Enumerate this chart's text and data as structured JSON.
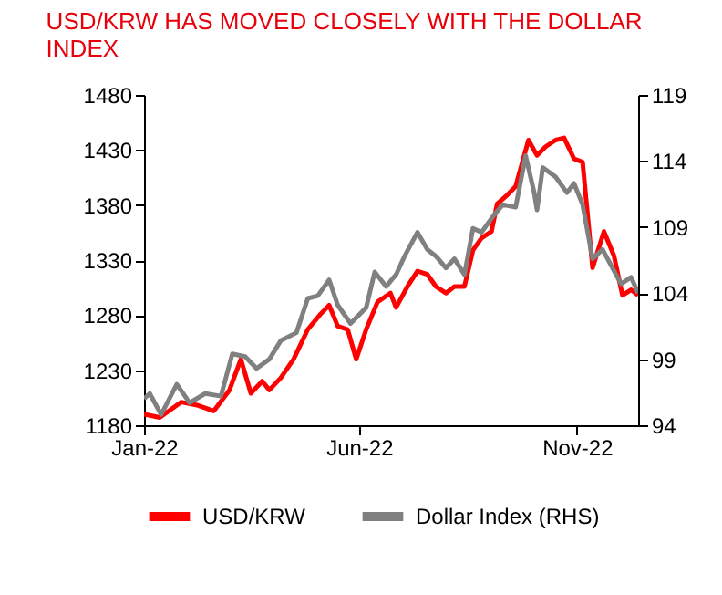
{
  "chart_data": {
    "type": "line",
    "title": "USD/KRW HAS MOVED CLOSELY WITH THE DOLLAR INDEX",
    "legend": "bottom",
    "xlim": [
      "2022-01-01",
      "2022-12-14"
    ],
    "xticks": [
      {
        "value": "2022-01-01",
        "label": "Jan-22"
      },
      {
        "value": "2022-06-01",
        "label": "Jun-22"
      },
      {
        "value": "2022-11-01",
        "label": "Nov-22"
      }
    ],
    "ylim": [
      1180,
      1480
    ],
    "yticks": [
      1180,
      1230,
      1280,
      1330,
      1380,
      1430,
      1480
    ],
    "y2lim": [
      94,
      119
    ],
    "y2ticks": [
      94,
      99,
      104,
      109,
      114,
      119
    ],
    "series": [
      {
        "name": "USD/KRW",
        "color": "#ff0000",
        "x": [
          "2022-01-01",
          "2022-01-12",
          "2022-01-27",
          "2022-02-08",
          "2022-02-19",
          "2022-03-02",
          "2022-03-10",
          "2022-03-17",
          "2022-03-25",
          "2022-03-30",
          "2022-04-07",
          "2022-04-16",
          "2022-04-26",
          "2022-05-05",
          "2022-05-11",
          "2022-05-17",
          "2022-05-24",
          "2022-05-30",
          "2022-06-06",
          "2022-06-14",
          "2022-06-23",
          "2022-06-27",
          "2022-07-05",
          "2022-07-12",
          "2022-07-19",
          "2022-07-25",
          "2022-08-01",
          "2022-08-07",
          "2022-08-14",
          "2022-08-20",
          "2022-08-26",
          "2022-09-02",
          "2022-09-06",
          "2022-09-13",
          "2022-09-19",
          "2022-09-28",
          "2022-10-04",
          "2022-10-10",
          "2022-10-17",
          "2022-10-23",
          "2022-10-30",
          "2022-11-05",
          "2022-11-12",
          "2022-11-20",
          "2022-11-27",
          "2022-12-03",
          "2022-12-09",
          "2022-12-14"
        ],
        "values": [
          1190,
          1187,
          1201,
          1198,
          1193,
          1212,
          1240,
          1209,
          1220,
          1212,
          1223,
          1240,
          1267,
          1281,
          1289,
          1270,
          1267,
          1240,
          1267,
          1292,
          1300,
          1287,
          1306,
          1320,
          1317,
          1306,
          1300,
          1306,
          1306,
          1339,
          1350,
          1356,
          1381,
          1389,
          1397,
          1439,
          1425,
          1433,
          1439,
          1441,
          1422,
          1419,
          1323,
          1356,
          1334,
          1298,
          1303,
          1298
        ]
      },
      {
        "name": "Dollar Index (RHS)",
        "color": "#808080",
        "axis": "y2",
        "x": [
          "2022-01-01",
          "2022-01-05",
          "2022-01-13",
          "2022-01-24",
          "2022-02-02",
          "2022-02-13",
          "2022-02-24",
          "2022-03-04",
          "2022-03-13",
          "2022-03-21",
          "2022-03-30",
          "2022-04-07",
          "2022-04-18",
          "2022-04-26",
          "2022-05-03",
          "2022-05-11",
          "2022-05-17",
          "2022-05-26",
          "2022-06-06",
          "2022-06-12",
          "2022-06-20",
          "2022-06-27",
          "2022-07-03",
          "2022-07-12",
          "2022-07-19",
          "2022-07-25",
          "2022-08-01",
          "2022-08-07",
          "2022-08-14",
          "2022-08-20",
          "2022-08-26",
          "2022-09-03",
          "2022-09-10",
          "2022-09-19",
          "2022-09-26",
          "2022-10-02",
          "2022-10-04",
          "2022-10-08",
          "2022-10-17",
          "2022-10-25",
          "2022-10-30",
          "2022-11-05",
          "2022-11-12",
          "2022-11-19",
          "2022-11-25",
          "2022-12-02",
          "2022-12-09",
          "2022-12-14"
        ],
        "values": [
          96.0,
          96.4,
          94.8,
          97.1,
          95.7,
          96.4,
          96.2,
          99.4,
          99.2,
          98.3,
          99.0,
          100.4,
          101.0,
          103.6,
          103.8,
          105.0,
          103.1,
          101.7,
          102.9,
          105.6,
          104.5,
          105.4,
          106.8,
          108.6,
          107.3,
          106.8,
          105.9,
          106.6,
          105.4,
          108.9,
          108.6,
          109.8,
          110.7,
          110.5,
          114.4,
          111.6,
          110.3,
          113.5,
          112.8,
          111.6,
          112.3,
          110.7,
          106.6,
          107.3,
          106.1,
          104.7,
          105.2,
          104.0
        ]
      }
    ]
  }
}
